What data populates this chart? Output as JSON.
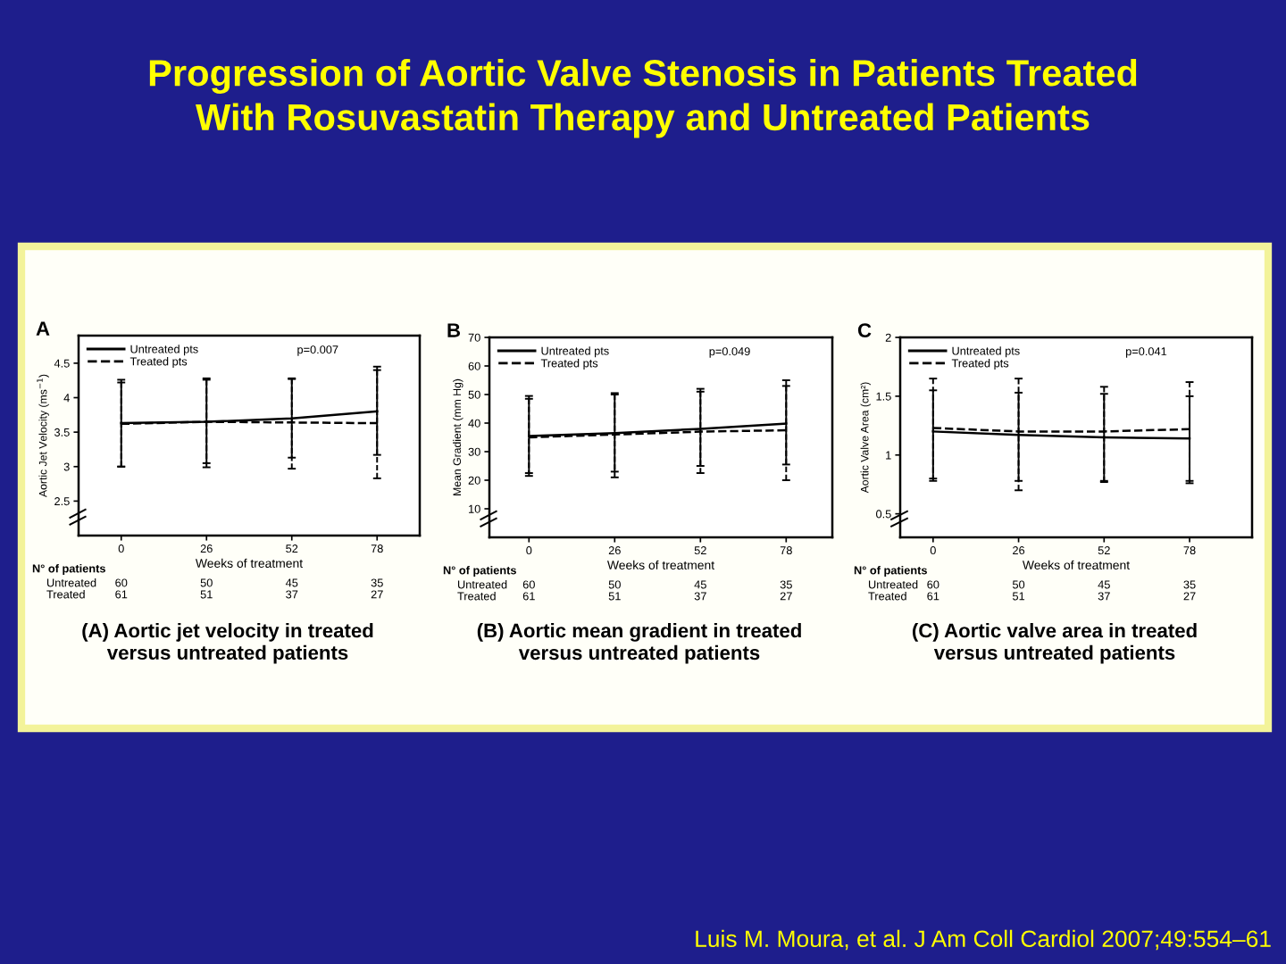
{
  "chart_data": [
    {
      "type": "line",
      "title": "Progression of Aortic Valve Stenosis in Patients Treated\nWith Rosuvastatin Therapy and Untreated Patients",
      "subtitle": "(A) Aortic jet velocity in treated\nversus untreated patients",
      "xlabel": "Weeks of treatment",
      "ylabel": "Aortic Jet Velocity (ms$^{−1}$)",
      "x": [
        0,
        26,
        52,
        78
      ],
      "xlim": [
        -13,
        91
      ],
      "xticks": [
        0,
        26,
        52,
        78
      ],
      "ylim": [
        2.0,
        4.9
      ],
      "yticks": [
        2.5,
        3,
        3.5,
        4,
        4.5
      ],
      "legend": "top left",
      "series": [
        {
          "name": "Untreated pts",
          "color": "#000000",
          "line_style": "solid",
          "values": [
            3.63,
            3.65,
            3.7,
            3.8
          ],
          "errors": [
            [
              3.0,
              4.26
            ],
            [
              3.05,
              4.28
            ],
            [
              3.13,
              4.28
            ],
            [
              3.17,
              4.45
            ]
          ]
        },
        {
          "name": "Treated pts",
          "color": "#000000",
          "line_style": "dashed",
          "values": [
            3.62,
            3.65,
            3.64,
            3.63
          ],
          "errors": [
            [
              3.0,
              4.22
            ],
            [
              2.99,
              4.26
            ],
            [
              2.97,
              4.27
            ],
            [
              2.83,
              4.4
            ]
          ]
        }
      ],
      "annotations": [
        "A",
        "p=0.007",
        "N° of patients",
        "Untreated",
        "Treated",
        "60",
        "50",
        "45",
        "35",
        "61",
        "51",
        "37",
        "27",
        "Luis M. Moura, et al. J Am Coll Cardiol 2007;49:554–61"
      ]
    },
    {
      "type": "line",
      "subtitle": "(B) Aortic mean gradient in treated\nversus untreated patients",
      "xlabel": "Weeks of treatment",
      "ylabel": "Mean Gradient (mm Hg)",
      "x": [
        0,
        26,
        52,
        78
      ],
      "xlim": [
        -12,
        92
      ],
      "xticks": [
        0,
        26,
        52,
        78
      ],
      "ylim": [
        0,
        70
      ],
      "yticks": [
        10,
        20,
        30,
        40,
        50,
        60,
        70
      ],
      "legend": "top left",
      "series": [
        {
          "name": "Untreated pts",
          "color": "#000000",
          "line_style": "solid",
          "values": [
            35.5,
            36.5,
            38,
            39.8
          ],
          "errors": [
            [
              22.5,
              49.5
            ],
            [
              23,
              50.5
            ],
            [
              25,
              52
            ],
            [
              25.5,
              55
            ]
          ]
        },
        {
          "name": "Treated pts",
          "color": "#000000",
          "line_style": "dashed",
          "values": [
            35,
            36,
            37,
            37.5
          ],
          "errors": [
            [
              21.5,
              48.5
            ],
            [
              21,
              50
            ],
            [
              22.5,
              51
            ],
            [
              20,
              53
            ]
          ]
        }
      ],
      "annotations": [
        "B",
        "p=0.049",
        "N° of patients",
        "Untreated",
        "Treated",
        "60",
        "50",
        "45",
        "35",
        "61",
        "51",
        "37",
        "27"
      ]
    },
    {
      "type": "line",
      "subtitle": "(C) Aortic valve area in treated\nversus untreated patients",
      "xlabel": "Weeks of treatment",
      "ylabel": "Aortic Valve Area (cm²)",
      "x": [
        0,
        26,
        52,
        78
      ],
      "xlim": [
        -10,
        97
      ],
      "xticks": [
        0,
        26,
        52,
        78
      ],
      "ylim": [
        0.3,
        2.0
      ],
      "yticks": [
        0.5,
        1,
        1.5,
        2
      ],
      "legend": "top left",
      "series": [
        {
          "name": "Untreated pts",
          "color": "#000000",
          "line_style": "solid",
          "values": [
            1.2,
            1.17,
            1.15,
            1.14
          ],
          "errors": [
            [
              0.8,
              1.55
            ],
            [
              0.78,
              1.53
            ],
            [
              0.78,
              1.52
            ],
            [
              0.76,
              1.5
            ]
          ]
        },
        {
          "name": "Treated pts",
          "color": "#000000",
          "line_style": "dashed",
          "values": [
            1.23,
            1.2,
            1.2,
            1.22
          ],
          "errors": [
            [
              0.78,
              1.65
            ],
            [
              0.7,
              1.65
            ],
            [
              0.77,
              1.58
            ],
            [
              0.78,
              1.62
            ]
          ]
        }
      ],
      "annotations": [
        "C",
        "p=0.041",
        "N° of patients",
        "Untreated",
        "Treated",
        "60",
        "50",
        "45",
        "35",
        "61",
        "51",
        "37",
        "27"
      ]
    }
  ]
}
